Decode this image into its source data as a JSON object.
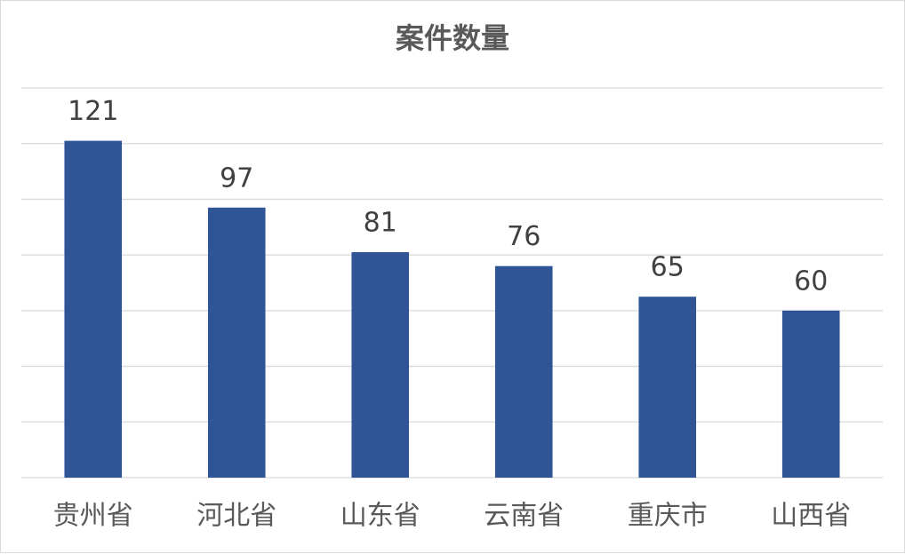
{
  "chart_data": {
    "type": "bar",
    "title": "案件数量",
    "categories": [
      "贵州省",
      "河北省",
      "山东省",
      "云南省",
      "重庆市",
      "山西省"
    ],
    "values": [
      121,
      97,
      81,
      76,
      65,
      60
    ],
    "color": "#2f5597",
    "ylim": [
      0,
      140
    ],
    "yticks": [
      0,
      20,
      40,
      60,
      80,
      100,
      120,
      140
    ],
    "grid": true
  }
}
